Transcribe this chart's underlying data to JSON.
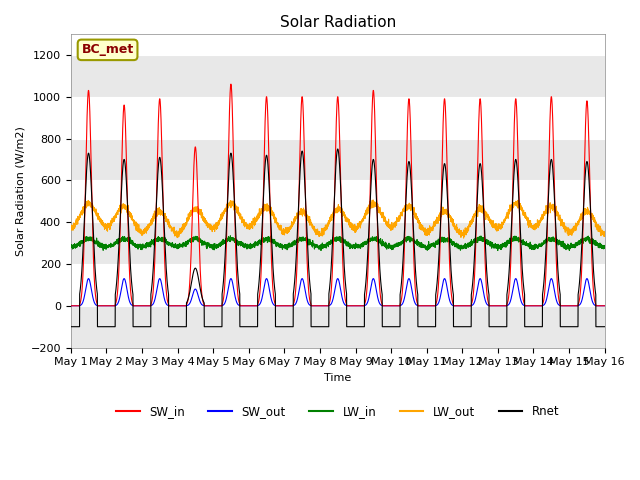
{
  "title": "Solar Radiation",
  "ylabel": "Solar Radiation (W/m2)",
  "xlabel": "Time",
  "ylim": [
    -200,
    1300
  ],
  "yticks": [
    -200,
    0,
    200,
    400,
    600,
    800,
    1000,
    1200
  ],
  "days": 15,
  "points_per_day": 288,
  "month": "May",
  "annotation_text": "BC_met",
  "annotation_color": "#8B0000",
  "annotation_bg": "#FFFFCC",
  "annotation_border": "#999900",
  "line_colors": {
    "SW_in": "red",
    "SW_out": "blue",
    "LW_in": "green",
    "LW_out": "orange",
    "Rnet": "black"
  },
  "SW_in_peaks": [
    1030,
    960,
    990,
    760,
    1060,
    1000,
    1000,
    1000,
    1030,
    990,
    990,
    990,
    990,
    1000,
    980
  ],
  "SW_out_peaks": [
    130,
    130,
    130,
    80,
    130,
    130,
    130,
    130,
    130,
    130,
    130,
    130,
    130,
    130,
    130
  ],
  "LW_in_base": 280,
  "LW_out_base": 350,
  "LW_out_drop": 330,
  "Rnet_peaks": [
    730,
    700,
    710,
    180,
    730,
    720,
    740,
    750,
    700,
    690,
    680,
    680,
    700,
    700,
    690
  ],
  "Rnet_night": -100,
  "background_color": "#FFFFFF",
  "plot_bg_color": "#FFFFFF",
  "grid_color": "#DDDDDD",
  "tick_label_size": 8,
  "legend_entries": [
    "SW_in",
    "SW_out",
    "LW_in",
    "LW_out",
    "Rnet"
  ]
}
